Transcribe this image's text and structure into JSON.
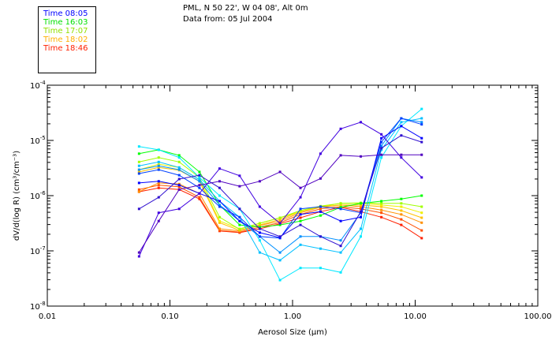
{
  "header": {
    "title_line1": "PML, N 50 22', W 04 08', Alt 0m",
    "title_line2": "Data from: 05 Jul 2004"
  },
  "legend": [
    {
      "label": "Time 08:05",
      "color": "#0000ff"
    },
    {
      "label": "Time 16:03",
      "color": "#00e000"
    },
    {
      "label": "Time 17:07",
      "color": "#90e000"
    },
    {
      "label": "Time 18:02",
      "color": "#ffb000"
    },
    {
      "label": "Time 18:46",
      "color": "#ff2000"
    }
  ],
  "chart_data": {
    "type": "line",
    "xlabel": "Aerosol Size (µm)",
    "ylabel": "dV/d(log R)  (cm³/cm⁻³)",
    "xscale": "log",
    "yscale": "log",
    "xlim": [
      0.01,
      100
    ],
    "ylim": [
      1e-08,
      0.0001
    ],
    "xticks": [
      "0.01",
      "0.10",
      "1.00",
      "10.00",
      "100.00"
    ],
    "xtick_values": [
      0.01,
      0.1,
      1,
      10,
      100
    ],
    "yticks": [
      {
        "base": "10",
        "exp": "-4",
        "value": -4
      },
      {
        "base": "10",
        "exp": "-5",
        "value": -5
      },
      {
        "base": "10",
        "exp": "-6",
        "value": -6
      },
      {
        "base": "10",
        "exp": "-7",
        "value": -7
      },
      {
        "base": "10",
        "exp": "-8",
        "value": -8
      }
    ],
    "x": [
      0.056,
      0.081,
      0.119,
      0.174,
      0.254,
      0.37,
      0.54,
      0.79,
      1.16,
      1.69,
      2.47,
      3.6,
      5.3,
      7.7,
      11.3
    ],
    "y_note": "values given as log10(dV/dlogR)",
    "series": [
      {
        "color": "#ff2000",
        "log10_y": [
          -5.93,
          -5.86,
          -5.89,
          -6.06,
          -6.64,
          -6.67,
          -6.6,
          -6.51,
          -6.4,
          -6.29,
          -6.21,
          -6.29,
          -6.39,
          -6.53,
          -6.77
        ]
      },
      {
        "color": "#ff5000",
        "log10_y": [
          -5.89,
          -5.81,
          -5.84,
          -6.03,
          -6.63,
          -6.66,
          -6.57,
          -6.49,
          -6.34,
          -6.24,
          -6.2,
          -6.24,
          -6.31,
          -6.43,
          -6.63
        ]
      },
      {
        "color": "#ff9000",
        "log10_y": [
          -5.93,
          -5.77,
          -5.79,
          -5.96,
          -6.6,
          -6.64,
          -6.54,
          -6.46,
          -6.31,
          -6.21,
          -6.17,
          -6.2,
          -6.26,
          -6.34,
          -6.49
        ]
      },
      {
        "color": "#ffc000",
        "log10_y": [
          -5.57,
          -5.49,
          -5.54,
          -5.74,
          -6.49,
          -6.63,
          -6.53,
          -6.43,
          -6.29,
          -6.2,
          -6.17,
          -6.17,
          -6.2,
          -6.27,
          -6.4
        ]
      },
      {
        "color": "#f0f000",
        "log10_y": [
          -5.53,
          -5.43,
          -5.49,
          -5.71,
          -6.46,
          -6.6,
          -6.5,
          -6.4,
          -6.29,
          -6.2,
          -6.14,
          -6.14,
          -6.17,
          -6.2,
          -6.31
        ]
      },
      {
        "color": "#a0ff00",
        "log10_y": [
          -5.39,
          -5.31,
          -5.39,
          -5.67,
          -6.39,
          -6.61,
          -6.5,
          -6.4,
          -6.27,
          -6.19,
          -6.14,
          -6.13,
          -6.14,
          -6.14,
          -6.2
        ]
      },
      {
        "color": "#00ff00",
        "log10_y": [
          -5.24,
          -5.17,
          -5.27,
          -5.57,
          -6.17,
          -6.53,
          -6.57,
          -6.53,
          -6.46,
          -6.36,
          -6.21,
          -6.14,
          -6.1,
          -6.06,
          -6.0
        ]
      },
      {
        "color": "#00e8ff",
        "log10_y": [
          -5.11,
          -5.17,
          -5.31,
          -5.67,
          -6.0,
          -6.24,
          -6.81,
          -7.53,
          -7.31,
          -7.31,
          -7.39,
          -6.74,
          -5.31,
          -4.74,
          -4.43
        ]
      },
      {
        "color": "#00c0ff",
        "log10_y": [
          -5.46,
          -5.39,
          -5.49,
          -5.71,
          -6.1,
          -6.39,
          -7.03,
          -7.17,
          -6.89,
          -6.96,
          -7.03,
          -6.6,
          -5.17,
          -4.67,
          -4.6
        ]
      },
      {
        "color": "#0090ff",
        "log10_y": [
          -5.53,
          -5.46,
          -5.53,
          -5.74,
          -6.17,
          -6.46,
          -6.74,
          -7.03,
          -6.74,
          -6.74,
          -6.81,
          -6.31,
          -5.1,
          -4.6,
          -4.67
        ]
      },
      {
        "color": "#0040ff",
        "log10_y": [
          -5.6,
          -5.53,
          -5.63,
          -5.86,
          -6.2,
          -6.39,
          -6.74,
          -6.77,
          -6.24,
          -6.2,
          -6.24,
          -6.31,
          -5.03,
          -4.6,
          -4.71
        ]
      },
      {
        "color": "#0000ff",
        "log10_y": [
          -5.77,
          -5.74,
          -5.81,
          -5.96,
          -6.1,
          -6.46,
          -6.67,
          -6.76,
          -6.34,
          -6.29,
          -6.46,
          -6.39,
          -4.96,
          -4.74,
          -4.96
        ]
      },
      {
        "color": "#4000e0",
        "log10_y": [
          -7.1,
          -6.31,
          -6.24,
          -5.96,
          -5.51,
          -5.64,
          -6.2,
          -6.5,
          -6.03,
          -5.24,
          -4.79,
          -4.67,
          -4.89,
          -5.31,
          -5.67
        ]
      },
      {
        "color": "#5000c0",
        "log10_y": [
          -7.03,
          -6.46,
          -5.89,
          -5.81,
          -5.74,
          -5.83,
          -5.74,
          -5.57,
          -5.86,
          -5.69,
          -5.27,
          -5.29,
          -5.26,
          -5.26,
          -5.26
        ]
      },
      {
        "color": "#3010d0",
        "log10_y": [
          -6.24,
          -6.03,
          -5.7,
          -5.63,
          -5.86,
          -6.24,
          -6.6,
          -6.74,
          -6.53,
          -6.74,
          -6.91,
          -6.29,
          -5.14,
          -4.91,
          -5.03
        ]
      }
    ]
  }
}
